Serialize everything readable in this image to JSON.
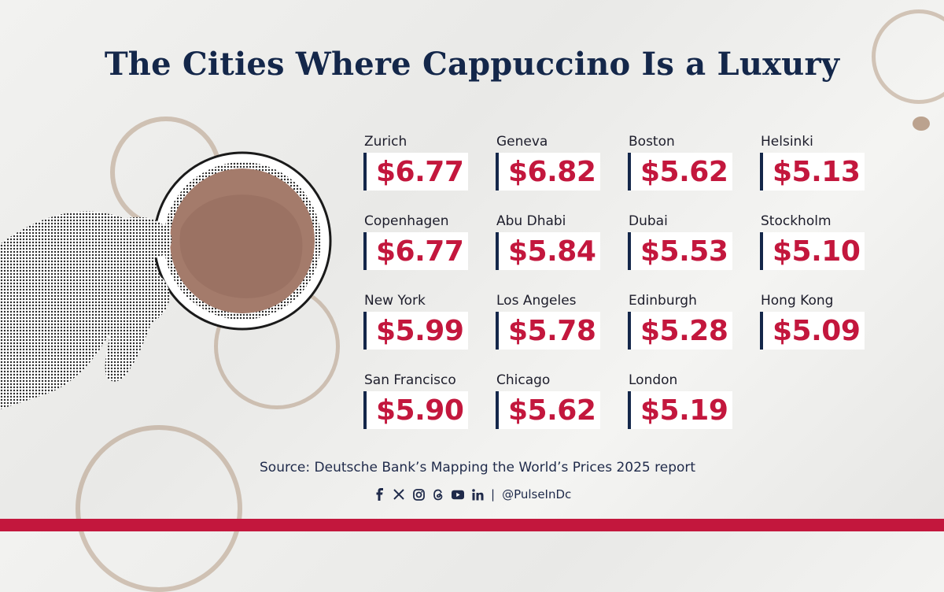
{
  "title": "The Cities Where Cappuccino Is a Luxury",
  "colors": {
    "navy": "#14274a",
    "accent_red": "#c3173d",
    "background": "#eeeeec"
  },
  "cities": [
    {
      "city": "Zurich",
      "price": "$6.77"
    },
    {
      "city": "Geneva",
      "price": "$6.82"
    },
    {
      "city": "Boston",
      "price": "$5.62"
    },
    {
      "city": "Helsinki",
      "price": "$5.13"
    },
    {
      "city": "Copenhagen",
      "price": "$6.77"
    },
    {
      "city": "Abu Dhabi",
      "price": "$5.84"
    },
    {
      "city": "Dubai",
      "price": "$5.53"
    },
    {
      "city": "Stockholm",
      "price": "$5.10"
    },
    {
      "city": "New York",
      "price": "$5.99"
    },
    {
      "city": "Los Angeles",
      "price": "$5.78"
    },
    {
      "city": "Edinburgh",
      "price": "$5.28"
    },
    {
      "city": "Hong Kong",
      "price": "$5.09"
    },
    {
      "city": "San Francisco",
      "price": "$5.90"
    },
    {
      "city": "Chicago",
      "price": "$5.62"
    },
    {
      "city": "London",
      "price": "$5.19"
    }
  ],
  "source": "Source: Deutsche Bank’s Mapping the World’s Prices 2025 report",
  "social": {
    "icons": [
      "facebook-icon",
      "x-icon",
      "instagram-icon",
      "threads-icon",
      "youtube-icon",
      "linkedin-icon"
    ],
    "separator": "|",
    "handle": "@PulseInDc"
  }
}
